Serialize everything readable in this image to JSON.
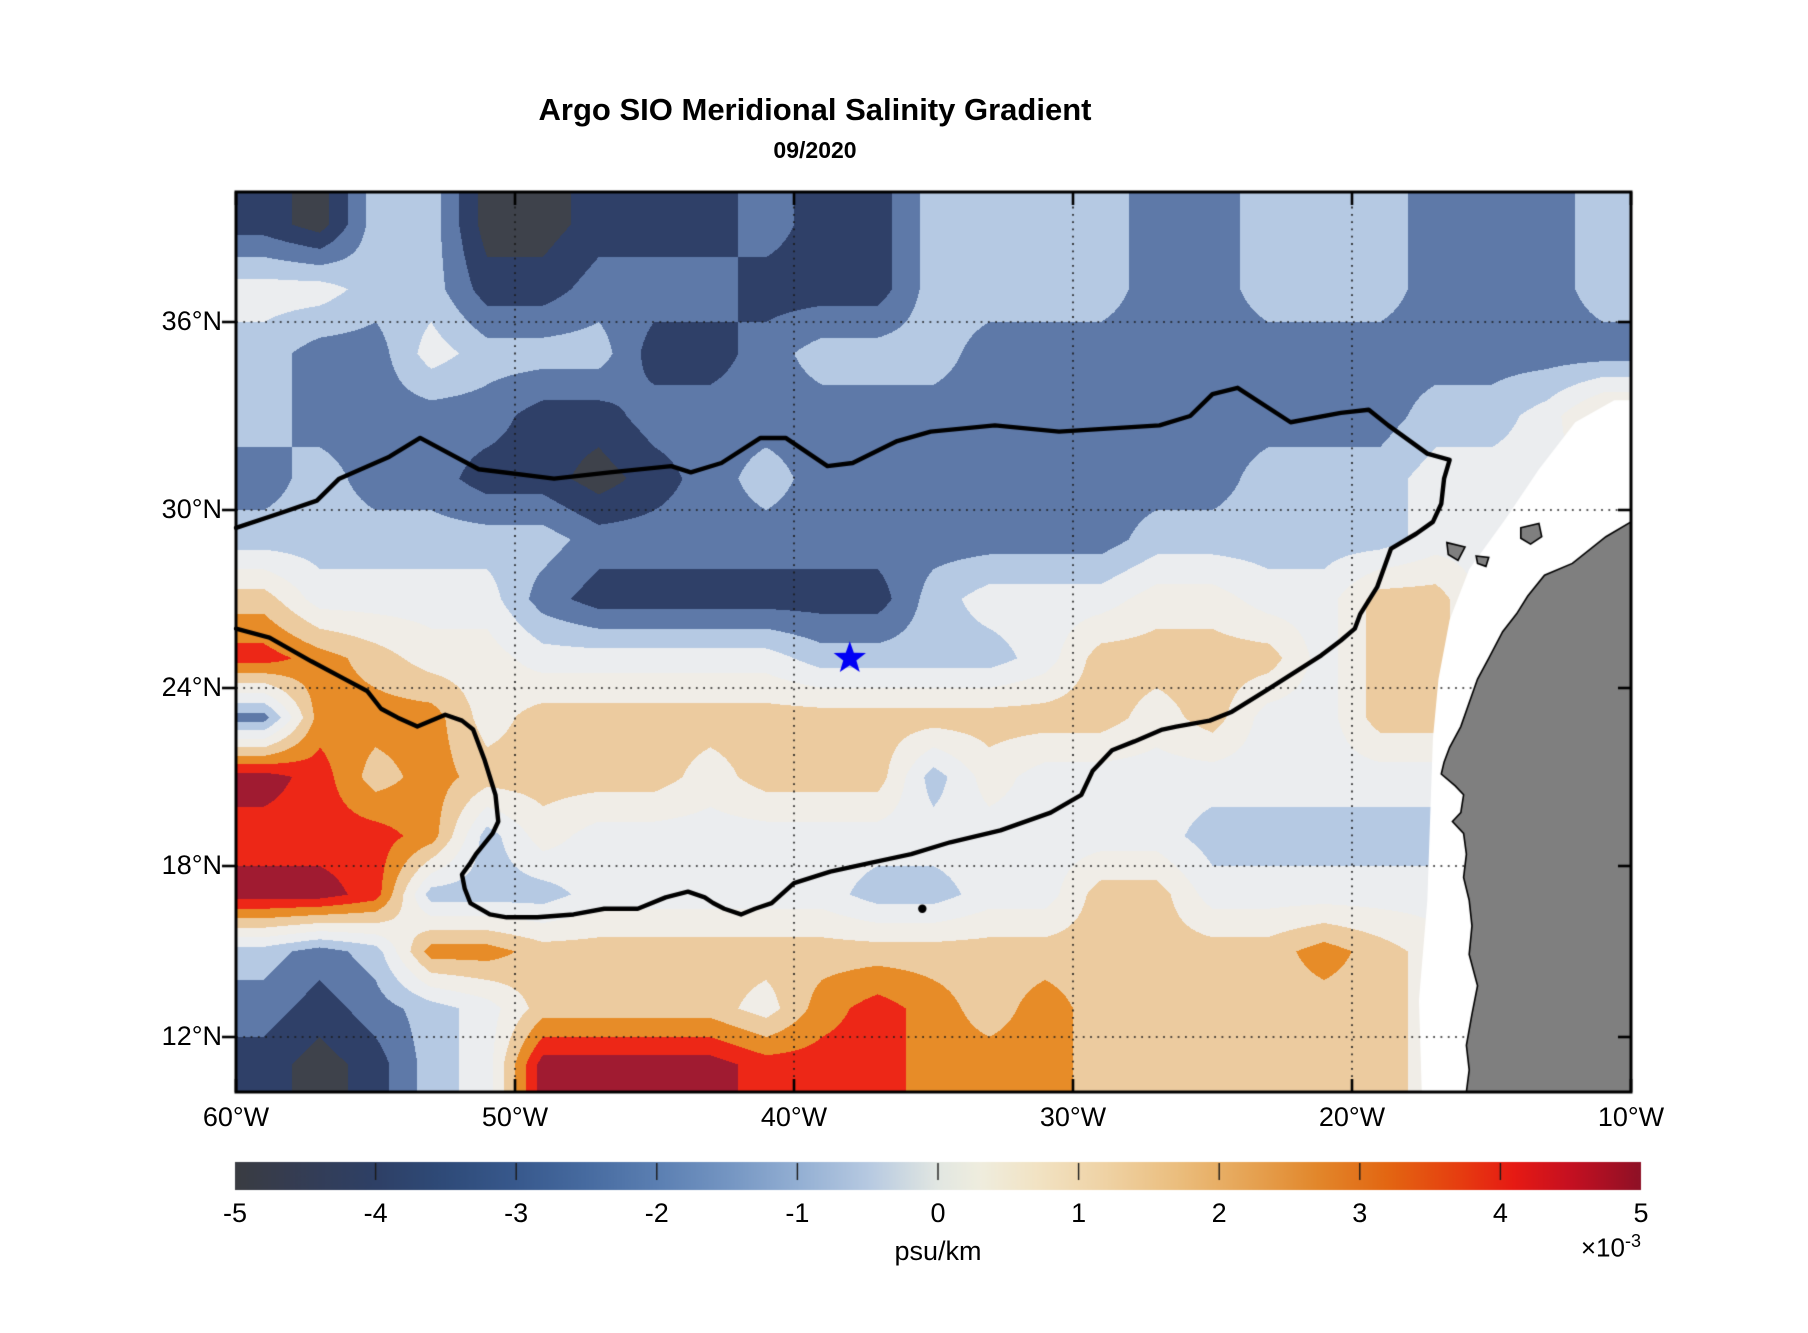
{
  "title": "Argo SIO Meridional Salinity Gradient",
  "subtitle": "09/2020",
  "chart_data": {
    "type": "filled-contour-map",
    "title": "Argo SIO Meridional Salinity Gradient",
    "subtitle": "09/2020",
    "units": "psu/km",
    "value_scale_prefix": "×10",
    "value_scale_exponent": "-3",
    "extent": {
      "lon_west": 60,
      "lon_east": 10,
      "lat_south": 10,
      "lat_north": 40
    },
    "x_axis": {
      "ticks": [
        {
          "label": "60°W",
          "value": 60
        },
        {
          "label": "50°W",
          "value": 50
        },
        {
          "label": "40°W",
          "value": 40
        },
        {
          "label": "30°W",
          "value": 30
        },
        {
          "label": "20°W",
          "value": 20
        },
        {
          "label": "10°W",
          "value": 10
        }
      ]
    },
    "y_axis": {
      "ticks": [
        {
          "label": "36°N",
          "value": 36
        },
        {
          "label": "30°N",
          "value": 30
        },
        {
          "label": "24°N",
          "value": 24
        },
        {
          "label": "18°N",
          "value": 18
        },
        {
          "label": "12°N",
          "value": 12
        }
      ]
    },
    "grid_on": true,
    "colorbar": {
      "min": -5,
      "max": 5,
      "label": "psu/km",
      "ticks": [
        {
          "label": "-5",
          "value": -5
        },
        {
          "label": "-4",
          "value": -4
        },
        {
          "label": "-3",
          "value": -3
        },
        {
          "label": "-2",
          "value": -2
        },
        {
          "label": "-1",
          "value": -1
        },
        {
          "label": "0",
          "value": 0
        },
        {
          "label": "1",
          "value": 1
        },
        {
          "label": "2",
          "value": 2
        },
        {
          "label": "3",
          "value": 3
        },
        {
          "label": "4",
          "value": 4
        },
        {
          "label": "5",
          "value": 5
        }
      ],
      "gradient": [
        [
          0.0,
          "#3A3C42"
        ],
        [
          0.05,
          "#343D55"
        ],
        [
          0.1,
          "#2E4066"
        ],
        [
          0.15,
          "#2F4B79"
        ],
        [
          0.2,
          "#38598D"
        ],
        [
          0.25,
          "#476BA0"
        ],
        [
          0.3,
          "#5B7FB2"
        ],
        [
          0.35,
          "#7495C2"
        ],
        [
          0.4,
          "#93AFD3"
        ],
        [
          0.45,
          "#B6C9E1"
        ],
        [
          0.5,
          "#E2E7E2"
        ],
        [
          0.53,
          "#EFEDDE"
        ],
        [
          0.57,
          "#F2E3C4"
        ],
        [
          0.62,
          "#EFD2A4"
        ],
        [
          0.67,
          "#EBBE7E"
        ],
        [
          0.72,
          "#E6A455"
        ],
        [
          0.77,
          "#E2872B"
        ],
        [
          0.82,
          "#E36612"
        ],
        [
          0.87,
          "#E63E10"
        ],
        [
          0.91,
          "#E61A14"
        ],
        [
          0.95,
          "#C51021"
        ],
        [
          1.0,
          "#8E1126"
        ]
      ]
    },
    "band_colors": [
      "#3E424B",
      "#2F4068",
      "#5E79A8",
      "#B5C9E3",
      "#EBEDEF",
      "#F0EDE7",
      "#ECCB9F",
      "#E78C28",
      "#ED2717",
      "#A01B31"
    ],
    "grid": {
      "lons": [
        59,
        57,
        55,
        53,
        51,
        49,
        47,
        45,
        43,
        41,
        39,
        37,
        35,
        33,
        31,
        29,
        27,
        25,
        23,
        21,
        19,
        17,
        15,
        13,
        11
      ],
      "lats": [
        39,
        37,
        35,
        33,
        31,
        29,
        27,
        25,
        23,
        21,
        19,
        17,
        15,
        13,
        11
      ],
      "values_1e3_psu_per_km": [
        [
          -3.5,
          -4.5,
          -1.5,
          -1.5,
          -4.5,
          -4.5,
          -3.5,
          -3.5,
          -3.5,
          -2.5,
          -3.5,
          -3.5,
          -1.5,
          -1.5,
          -1.5,
          -1.5,
          -2.5,
          -2.5,
          -1.5,
          -1.5,
          -1.5,
          -2.5,
          -2.5,
          -2.5,
          -1.5
        ],
        [
          -0.5,
          -0.5,
          -1.5,
          -1.5,
          -3.5,
          -3.5,
          -2.5,
          -2.5,
          -2.5,
          -3.5,
          -3.5,
          -3.5,
          -1.5,
          -1.5,
          -1.5,
          -1.5,
          -2.5,
          -2.5,
          -1.5,
          -1.5,
          -1.5,
          -2.5,
          -2.5,
          -2.5,
          -1.5
        ],
        [
          -1.5,
          -2.5,
          -2.5,
          -0.5,
          -1.5,
          -1.5,
          -1.5,
          -3.5,
          -3.5,
          -2.5,
          -1.5,
          -1.5,
          -1.5,
          -2.5,
          -2.5,
          -2.5,
          -2.5,
          -2.5,
          -2.5,
          -2.5,
          -2.5,
          -2.5,
          -2.5,
          -2.5,
          -2.5
        ],
        [
          -1.5,
          -2.5,
          -2.5,
          -2.5,
          -2.5,
          -3.5,
          -3.5,
          -2.5,
          -2.5,
          -2.5,
          -2.5,
          -2.5,
          -2.5,
          -2.5,
          -2.5,
          -2.5,
          -2.5,
          -2.5,
          -2.5,
          -2.5,
          -2.5,
          -1.5,
          -1.5,
          -0.5,
          1.5
        ],
        [
          -2.5,
          -1.5,
          -2.5,
          -2.5,
          -3.5,
          -3.5,
          -4.5,
          -3.5,
          -2.5,
          -1.5,
          -2.5,
          -2.5,
          -2.5,
          -2.5,
          -2.5,
          -2.5,
          -2.5,
          -2.5,
          -1.5,
          -1.5,
          -1.5,
          -0.5,
          -0.5,
          -0.5,
          0.5
        ],
        [
          -1.5,
          -1.5,
          -1.5,
          -1.5,
          -1.5,
          -1.5,
          -2.5,
          -2.5,
          -2.5,
          -2.5,
          -2.5,
          -2.5,
          -2.5,
          -2.5,
          -2.5,
          -2.5,
          -1.5,
          -1.5,
          -1.5,
          -1.5,
          -1.5,
          -0.5,
          -0.5,
          -0.5,
          -0.5
        ],
        [
          1.5,
          -0.5,
          -0.5,
          -0.5,
          -0.5,
          -2.5,
          -3.5,
          -3.5,
          -3.5,
          -3.5,
          -3.5,
          -3.5,
          -1.5,
          -0.5,
          -0.5,
          -0.5,
          0.5,
          0.5,
          -0.5,
          -0.5,
          1.5,
          1.5,
          -0.5,
          -0.5,
          -0.5
        ],
        [
          3.5,
          2.5,
          1.5,
          0.5,
          0.5,
          -0.5,
          -0.5,
          -0.5,
          -0.5,
          -0.5,
          -1.5,
          -1.5,
          -1.5,
          -1.5,
          -0.5,
          1.5,
          1.5,
          1.5,
          1.5,
          -0.5,
          1.5,
          1.5,
          -0.5,
          -0.5,
          -0.5
        ],
        [
          -2.5,
          2.5,
          2.5,
          2.5,
          0.5,
          1.5,
          1.5,
          1.5,
          1.5,
          1.5,
          1.5,
          1.5,
          1.5,
          1.5,
          1.5,
          1.5,
          0.5,
          1.5,
          -0.5,
          -0.5,
          1.5,
          1.5,
          -0.5,
          -0.5,
          -0.5
        ],
        [
          4.5,
          3.5,
          1.5,
          2.5,
          1.5,
          1.5,
          1.5,
          1.5,
          0.5,
          1.5,
          1.5,
          1.5,
          -1.5,
          0.5,
          -0.5,
          -0.5,
          -0.5,
          -0.5,
          -0.5,
          -0.5,
          -0.5,
          -0.5,
          -0.5,
          -0.5,
          -0.5
        ],
        [
          3.5,
          3.5,
          3.5,
          2.5,
          -1.5,
          0.5,
          -0.5,
          -0.5,
          -0.5,
          -0.5,
          -0.5,
          -0.5,
          -0.5,
          -0.5,
          -0.5,
          -0.5,
          -0.5,
          -1.5,
          -1.5,
          -1.5,
          -1.5,
          -1.5,
          -0.5,
          -0.5,
          -0.5
        ],
        [
          4.5,
          4.5,
          3.5,
          -1.5,
          -1.5,
          -1.5,
          -0.5,
          -0.5,
          -0.5,
          -0.5,
          -0.5,
          -1.5,
          -1.5,
          -0.5,
          -0.5,
          1.5,
          1.5,
          -0.5,
          -0.5,
          -0.5,
          -0.5,
          -0.5,
          -0.5,
          -0.5,
          -0.5
        ],
        [
          -1.5,
          -2.5,
          -1.5,
          2.5,
          2.5,
          1.5,
          1.5,
          1.5,
          1.5,
          1.5,
          1.5,
          1.5,
          1.5,
          1.5,
          1.5,
          1.5,
          1.5,
          1.5,
          1.5,
          2.5,
          1.5,
          0.5,
          -0.5,
          -0.5,
          -0.5
        ],
        [
          -2.5,
          -3.5,
          -2.5,
          -1.5,
          -0.5,
          1.5,
          1.5,
          1.5,
          1.5,
          0.5,
          2.5,
          3.5,
          2.5,
          1.5,
          2.5,
          1.5,
          1.5,
          1.5,
          1.5,
          1.5,
          1.5,
          0.5,
          -0.5,
          -0.5,
          -0.5
        ],
        [
          -3.5,
          -4.5,
          -3.5,
          -1.5,
          -0.5,
          4.5,
          4.5,
          4.5,
          4.5,
          3.5,
          3.5,
          3.5,
          2.5,
          2.5,
          2.5,
          1.5,
          1.5,
          1.5,
          1.5,
          1.5,
          1.5,
          0.5,
          -0.5,
          -0.5,
          -0.5
        ]
      ]
    },
    "marker": {
      "type": "star",
      "lon": 38.0,
      "lat": 25.0,
      "color": "#0000F5"
    },
    "contour_dot": {
      "lon": 35.4,
      "lat": 16.5
    },
    "contour_line_lonlat": [
      [
        60,
        26.0
      ],
      [
        58.8,
        25.7
      ],
      [
        57.3,
        24.9
      ],
      [
        56.1,
        24.3
      ],
      [
        55.3,
        23.9
      ],
      [
        54.8,
        23.3
      ],
      [
        54.2,
        23.0
      ],
      [
        53.5,
        22.7
      ],
      [
        52.5,
        23.1
      ],
      [
        51.9,
        22.9
      ],
      [
        51.5,
        22.6
      ],
      [
        51.1,
        21.6
      ],
      [
        50.9,
        21.0
      ],
      [
        50.7,
        20.4
      ],
      [
        50.6,
        19.5
      ],
      [
        50.8,
        19.1
      ],
      [
        51.4,
        18.4
      ],
      [
        51.6,
        18.1
      ],
      [
        51.9,
        17.7
      ],
      [
        51.8,
        17.2
      ],
      [
        51.6,
        16.7
      ],
      [
        50.9,
        16.3
      ],
      [
        50.3,
        16.2
      ],
      [
        49.2,
        16.2
      ],
      [
        47.9,
        16.3
      ],
      [
        46.8,
        16.5
      ],
      [
        45.6,
        16.5
      ],
      [
        44.6,
        16.9
      ],
      [
        43.8,
        17.1
      ],
      [
        43.2,
        16.9
      ],
      [
        42.9,
        16.7
      ],
      [
        42.5,
        16.5
      ],
      [
        41.9,
        16.3
      ],
      [
        41.4,
        16.5
      ],
      [
        40.8,
        16.7
      ],
      [
        40.0,
        17.4
      ],
      [
        38.7,
        17.8
      ],
      [
        37.3,
        18.1
      ],
      [
        35.8,
        18.4
      ],
      [
        34.4,
        18.8
      ],
      [
        32.6,
        19.2
      ],
      [
        30.8,
        19.8
      ],
      [
        29.7,
        20.4
      ],
      [
        29.3,
        21.2
      ],
      [
        28.6,
        21.9
      ],
      [
        27.8,
        22.2
      ],
      [
        26.8,
        22.6
      ],
      [
        26.3,
        22.7
      ],
      [
        25.1,
        22.9
      ],
      [
        24.3,
        23.2
      ],
      [
        23.1,
        23.9
      ],
      [
        22.1,
        24.5
      ],
      [
        21.1,
        25.1
      ],
      [
        20.4,
        25.6
      ],
      [
        19.9,
        26.0
      ],
      [
        19.7,
        26.5
      ],
      [
        19.1,
        27.4
      ],
      [
        18.6,
        28.7
      ],
      [
        17.7,
        29.2
      ],
      [
        17.1,
        29.6
      ],
      [
        16.8,
        30.2
      ],
      [
        16.7,
        31.0
      ],
      [
        16.5,
        31.6
      ],
      [
        17.3,
        31.8
      ],
      [
        18.7,
        32.7
      ],
      [
        19.4,
        33.2
      ],
      [
        20.4,
        33.1
      ],
      [
        22.2,
        32.8
      ],
      [
        24.1,
        33.9
      ],
      [
        25.0,
        33.7
      ],
      [
        25.8,
        33.0
      ],
      [
        26.9,
        32.7
      ],
      [
        30.5,
        32.5
      ],
      [
        32.8,
        32.7
      ],
      [
        35.1,
        32.5
      ],
      [
        36.3,
        32.2
      ],
      [
        37.9,
        31.5
      ],
      [
        38.8,
        31.4
      ],
      [
        40.3,
        32.3
      ],
      [
        41.2,
        32.3
      ],
      [
        42.6,
        31.5
      ],
      [
        43.7,
        31.2
      ],
      [
        44.4,
        31.4
      ],
      [
        46.6,
        31.2
      ],
      [
        48.6,
        31.0
      ],
      [
        51.3,
        31.3
      ],
      [
        53.4,
        32.3
      ],
      [
        54.5,
        31.7
      ],
      [
        56.3,
        31.0
      ],
      [
        57.1,
        30.3
      ],
      [
        58.4,
        29.9
      ],
      [
        60,
        29.4
      ]
    ],
    "land": {
      "color": "#7F7F7F",
      "coast_lonlat": [
        [
          10.0,
          29.6
        ],
        [
          10.9,
          29.1
        ],
        [
          12.1,
          28.2
        ],
        [
          13.1,
          27.8
        ],
        [
          13.7,
          27.1
        ],
        [
          14.1,
          26.5
        ],
        [
          14.6,
          25.9
        ],
        [
          15.1,
          25.0
        ],
        [
          15.5,
          24.3
        ],
        [
          15.8,
          23.5
        ],
        [
          16.1,
          22.7
        ],
        [
          16.5,
          22.0
        ],
        [
          16.7,
          21.5
        ],
        [
          16.8,
          21.1
        ],
        [
          16.3,
          20.7
        ],
        [
          16.0,
          20.4
        ],
        [
          16.1,
          19.8
        ],
        [
          16.4,
          19.5
        ],
        [
          16.0,
          19.1
        ],
        [
          15.9,
          18.4
        ],
        [
          16.0,
          17.6
        ],
        [
          15.8,
          16.8
        ],
        [
          15.7,
          15.9
        ],
        [
          15.8,
          14.9
        ],
        [
          15.5,
          13.8
        ],
        [
          15.7,
          12.8
        ],
        [
          15.9,
          11.7
        ],
        [
          15.8,
          10.8
        ],
        [
          15.9,
          10.0
        ]
      ],
      "islands_lonlat": [
        [
          [
            16.6,
            28.9
          ],
          [
            15.95,
            28.75
          ],
          [
            16.2,
            28.3
          ],
          [
            16.55,
            28.5
          ]
        ],
        [
          [
            15.55,
            28.45
          ],
          [
            15.1,
            28.4
          ],
          [
            15.2,
            28.1
          ],
          [
            15.5,
            28.2
          ]
        ],
        [
          [
            13.95,
            29.4
          ],
          [
            13.3,
            29.55
          ],
          [
            13.2,
            29.1
          ],
          [
            13.6,
            28.85
          ],
          [
            13.95,
            29.05
          ]
        ]
      ]
    },
    "no_data_mask_lonlat": [
      [
        10.0,
        33.5
      ],
      [
        10.6,
        33.5
      ],
      [
        12.0,
        32.8
      ],
      [
        13.3,
        31.3
      ],
      [
        14.5,
        29.7
      ],
      [
        15.8,
        28.0
      ],
      [
        16.5,
        26.3
      ],
      [
        16.9,
        24.3
      ],
      [
        17.1,
        22.3
      ],
      [
        17.2,
        19.6
      ],
      [
        17.3,
        16.8
      ],
      [
        17.6,
        13.3
      ],
      [
        17.5,
        10.0
      ],
      [
        10.0,
        10.0
      ]
    ]
  }
}
